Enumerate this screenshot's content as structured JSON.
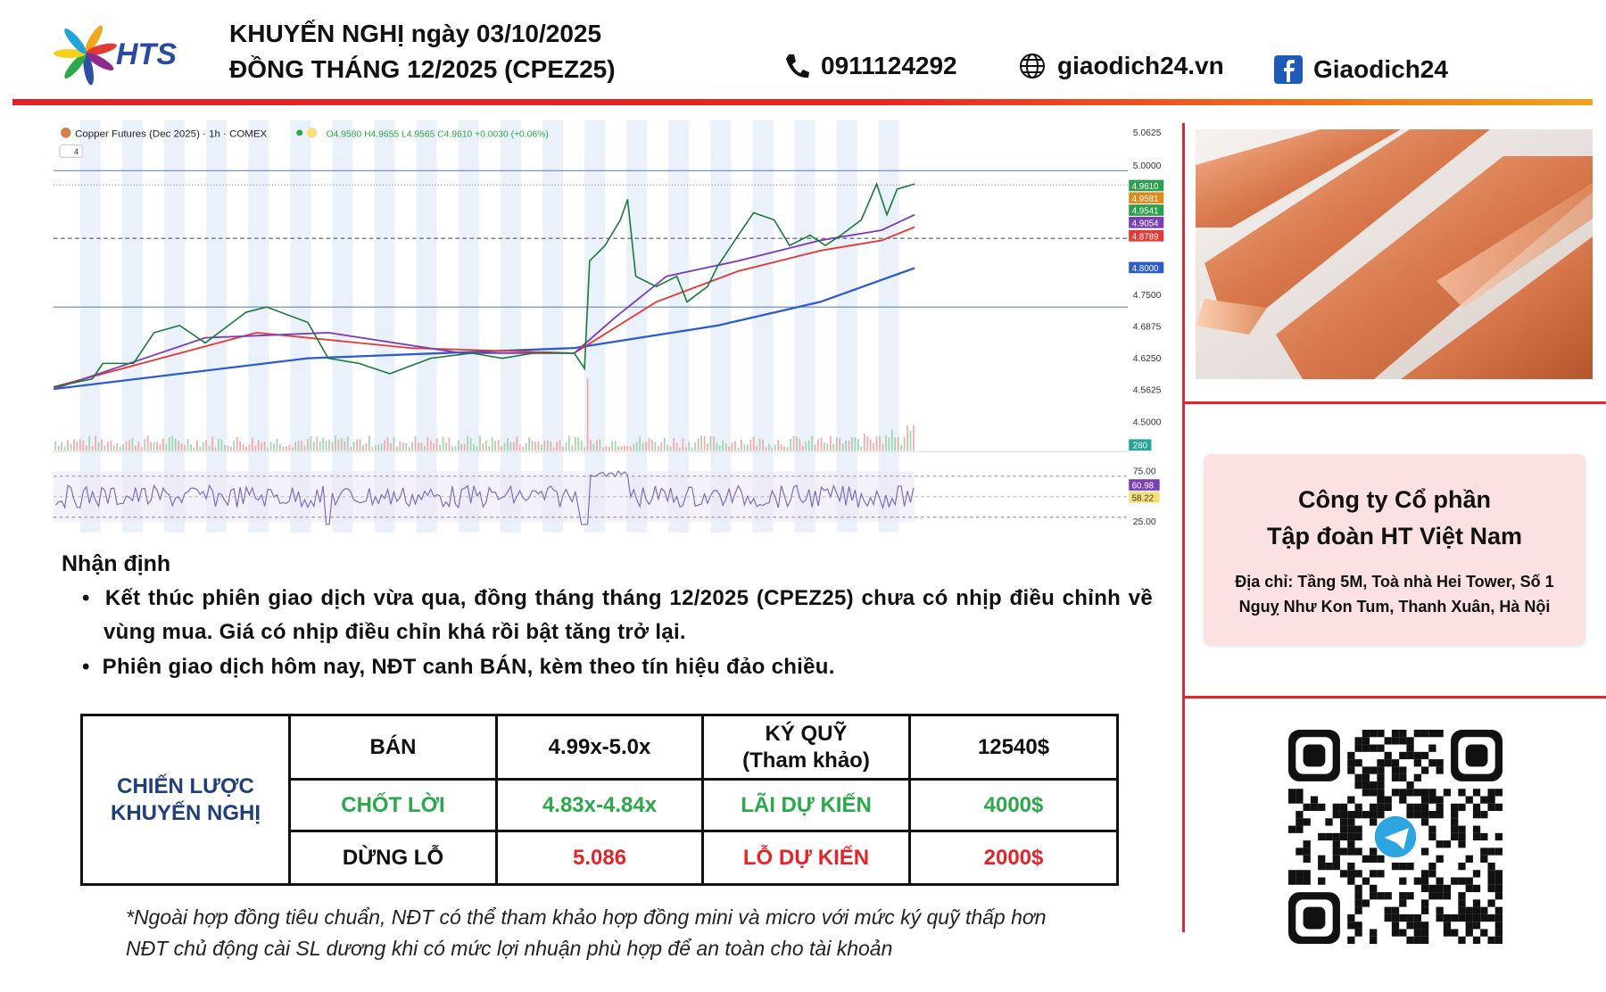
{
  "header": {
    "logo_text": "HTS",
    "title_line1": "KHUYẾN NGHỊ ngày 03/10/2025",
    "title_line2": "ĐỒNG THÁNG 12/2025 (CPEZ25)",
    "phone": "0911124292",
    "website": "giaodich24.vn",
    "facebook": "Giaodich24"
  },
  "trading_chart": {
    "symbol_line": "Copper Futures (Dec 2025) · 1h · COMEX",
    "ohlc": "O4.9580 H4.9655 L4.9565 C4.9610 +0.0030 (+0.06%)",
    "indicator_count": "4",
    "price_axis": [
      "5.0625",
      "5.0000",
      "4.7500",
      "4.6875",
      "4.6250",
      "4.5625",
      "4.5000"
    ],
    "price_badges": [
      "4.9610",
      "4.9581",
      "4.9541",
      "4.9054",
      "4.8789",
      "4.8000"
    ],
    "volume_badge": "280",
    "rsi_axis": [
      "75.00",
      "25.00"
    ],
    "rsi_badges": [
      "60.98",
      "58.22"
    ]
  },
  "analysis": {
    "title": "Nhận định",
    "bullets": [
      "Kết thúc phiên giao dịch vừa qua, đồng tháng tháng 12/2025 (CPEZ25) chưa có nhịp điều chỉnh về vùng mua. Giá có nhịp điều chỉn khá rồi bật tăng trở lại.",
      "Phiên giao dịch hôm nay, NĐT canh BÁN, kèm theo tín hiệu đảo chiều."
    ]
  },
  "strategy_table": {
    "row_header": "CHIẾN LƯỢC\nKHUYẾN NGHỊ",
    "rows": [
      [
        "BÁN",
        "4.99x-5.0x",
        "KÝ QUỸ\n(Tham khảo)",
        "12540$"
      ],
      [
        "CHỐT LỜI",
        "4.83x-4.84x",
        "LÃI DỰ KIẾN",
        "4000$"
      ],
      [
        "DỪNG LỖ",
        "5.086",
        "LỖ DỰ KIẾN",
        "2000$"
      ]
    ]
  },
  "footnote": [
    "*Ngoài hợp đồng tiêu chuẩn, NĐT có thể tham khảo hợp đồng mini và micro với mức ký quỹ thấp hơn",
    "NĐT chủ động cài SL dương khi có mức lợi nhuận phù hợp để an toàn cho tài khoản"
  ],
  "company": {
    "name_line1": "Công ty Cổ phần",
    "name_line2": "Tập đoàn HT Việt Nam",
    "address": [
      "Địa chỉ: Tầng 5M, Toà nhà Hei Tower, Số 1",
      "Nguỵ Như Kon Tum, Thanh Xuân, Hà Nội"
    ]
  }
}
